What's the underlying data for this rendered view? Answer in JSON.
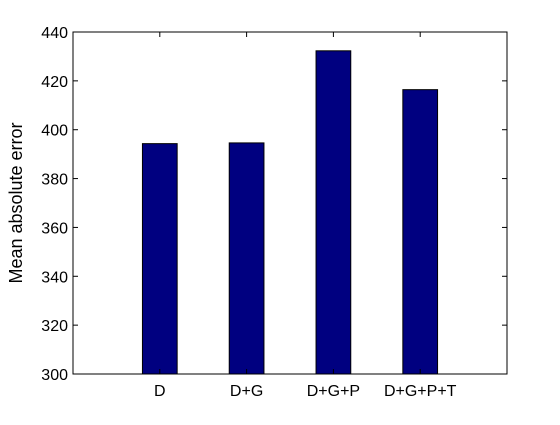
{
  "chart_data": {
    "type": "bar",
    "title": "",
    "xlabel": "",
    "ylabel": "Mean absolute error",
    "categories": [
      "D",
      "D+G",
      "D+G+P",
      "D+G+P+T"
    ],
    "values": [
      394.3,
      394.6,
      432.3,
      416.4
    ],
    "ylim": [
      300,
      440
    ],
    "yticks": [
      300,
      320,
      340,
      360,
      380,
      400,
      420,
      440
    ],
    "xlim": [
      0,
      5
    ],
    "grid": false,
    "legend": null,
    "bar_color": "#000080"
  }
}
